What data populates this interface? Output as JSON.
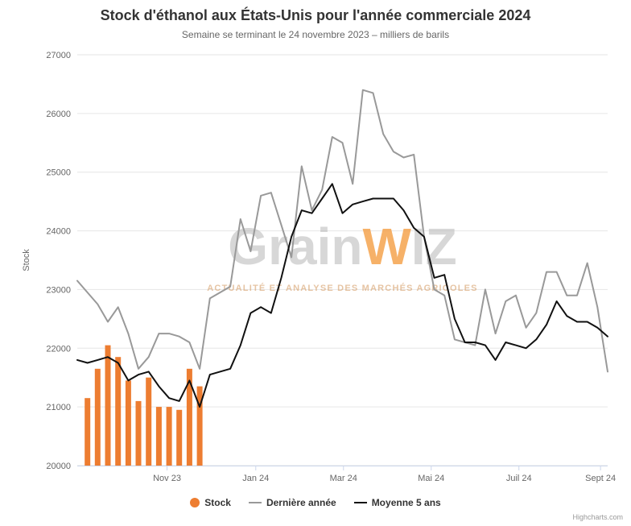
{
  "title": "Stock d'éthanol aux États-Unis pour l'année commerciale 2024",
  "subtitle": "Semaine se terminant le 24 novembre 2023 – milliers de barils",
  "credits": "Highcharts.com",
  "watermark": {
    "brand_prefix": "Grain",
    "brand_accent": "W",
    "brand_suffix": "IZ",
    "tagline": "ACTUALITÉ ET ANALYSE DES MARCHÉS AGRICOLES"
  },
  "legend": [
    {
      "label": "Stock"
    },
    {
      "label": "Dernière année"
    },
    {
      "label": "Moyenne 5 ans"
    }
  ],
  "colors": {
    "stock_bar": "#ed7d31",
    "last_year_line": "#999999",
    "avg_line": "#111111",
    "grid": "#e6e6e6",
    "axis_line": "#ccd6eb",
    "axis_text": "#666666",
    "title_text": "#333333",
    "legend_text": "#333333",
    "credits_text": "#999999",
    "watermark_gray": "rgba(175,175,175,0.5)",
    "watermark_orange": "rgba(244,158,66,0.8)",
    "watermark_tagline": "rgba(213,157,101,0.6)"
  },
  "chart_data": {
    "type": "mixed",
    "title": "Stock d'éthanol aux États-Unis pour l'année commerciale 2024",
    "subtitle": "Semaine se terminant le 24 novembre 2023 – milliers de barils",
    "xlabel": "",
    "ylabel": "Stock",
    "ylim": [
      20000,
      27000
    ],
    "yticks": [
      20000,
      21000,
      22000,
      23000,
      24000,
      25000,
      26000,
      27000
    ],
    "grid": true,
    "legend_position": "bottom",
    "weeks_total": 52,
    "xticks": [
      {
        "label": "Nov 23",
        "week": 8.8
      },
      {
        "label": "Jan 24",
        "week": 17.5
      },
      {
        "label": "Mar 24",
        "week": 26.1
      },
      {
        "label": "Mai 24",
        "week": 34.7
      },
      {
        "label": "Juil 24",
        "week": 43.3
      },
      {
        "label": "Sept 24",
        "week": 51.3
      }
    ],
    "series": [
      {
        "name": "Stock",
        "key": "stock",
        "type": "column",
        "color": "#ed7d31",
        "x_start_week": 1,
        "values": [
          21150,
          21650,
          22050,
          21850,
          21450,
          21100,
          21500,
          21000,
          21000,
          20950,
          21650,
          21350
        ]
      },
      {
        "name": "Dernière année",
        "key": "last-year",
        "type": "line",
        "color": "#999999",
        "x_start_week": 0,
        "values": [
          23150,
          22950,
          22750,
          22450,
          22700,
          22250,
          21650,
          21850,
          22250,
          22250,
          22200,
          22100,
          21650,
          22850,
          22950,
          23050,
          24200,
          23650,
          24600,
          24650,
          24100,
          23550,
          25100,
          24350,
          24700,
          25600,
          25500,
          24800,
          26400,
          26350,
          25650,
          25350,
          25250,
          25300,
          23900,
          23000,
          22900,
          22150,
          22100,
          22050,
          23000,
          22250,
          22800,
          22900,
          22350,
          22600,
          23300,
          23300,
          22900,
          22900,
          23450,
          22700,
          21600
        ]
      },
      {
        "name": "Moyenne 5 ans",
        "key": "five-year-avg",
        "type": "line",
        "color": "#111111",
        "x_start_week": 0,
        "values": [
          21800,
          21750,
          21800,
          21850,
          21750,
          21450,
          21550,
          21600,
          21350,
          21150,
          21100,
          21450,
          21000,
          21550,
          21600,
          21650,
          22050,
          22600,
          22700,
          22600,
          23200,
          23900,
          24350,
          24300,
          24550,
          24800,
          24300,
          24450,
          24500,
          24550,
          24550,
          24550,
          24350,
          24050,
          23900,
          23200,
          23250,
          22500,
          22100,
          22100,
          22050,
          21800,
          22100,
          22050,
          22000,
          22150,
          22400,
          22800,
          22550,
          22450,
          22450,
          22350,
          22200
        ]
      }
    ]
  }
}
